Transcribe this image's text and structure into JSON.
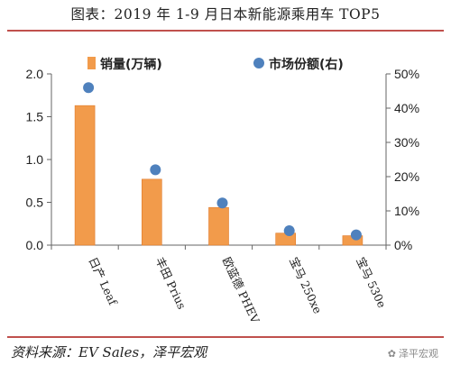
{
  "page": {
    "title": "图表：2019 年 1-9 月日本新能源乘用车 TOP5",
    "source": "资料来源：EV Sales，泽平宏观",
    "watermark": "泽平宏观"
  },
  "chart_data": {
    "type": "bar",
    "title": "",
    "categories": [
      "日产 Leaf",
      "丰田 Prius",
      "欧蓝德 PHEV",
      "宝马 250xe",
      "宝马 530e"
    ],
    "series": [
      {
        "name": "销量(万辆)",
        "type": "bar",
        "axis": "left",
        "color": "#f29b4b",
        "values": [
          1.63,
          0.77,
          0.44,
          0.14,
          0.11
        ]
      },
      {
        "name": "市场份额(右)",
        "type": "scatter",
        "axis": "right",
        "color": "#4f81bd",
        "values": [
          0.46,
          0.22,
          0.123,
          0.042,
          0.03
        ]
      }
    ],
    "left_axis": {
      "ylim": [
        0,
        2.0
      ],
      "ticks": [
        "0.0",
        "0.5",
        "1.0",
        "1.5",
        "2.0"
      ]
    },
    "right_axis": {
      "ylim": [
        0,
        0.5
      ],
      "ticks": [
        "0%",
        "10%",
        "20%",
        "30%",
        "40%",
        "50%"
      ]
    },
    "grid": false,
    "legend_position": "top"
  }
}
